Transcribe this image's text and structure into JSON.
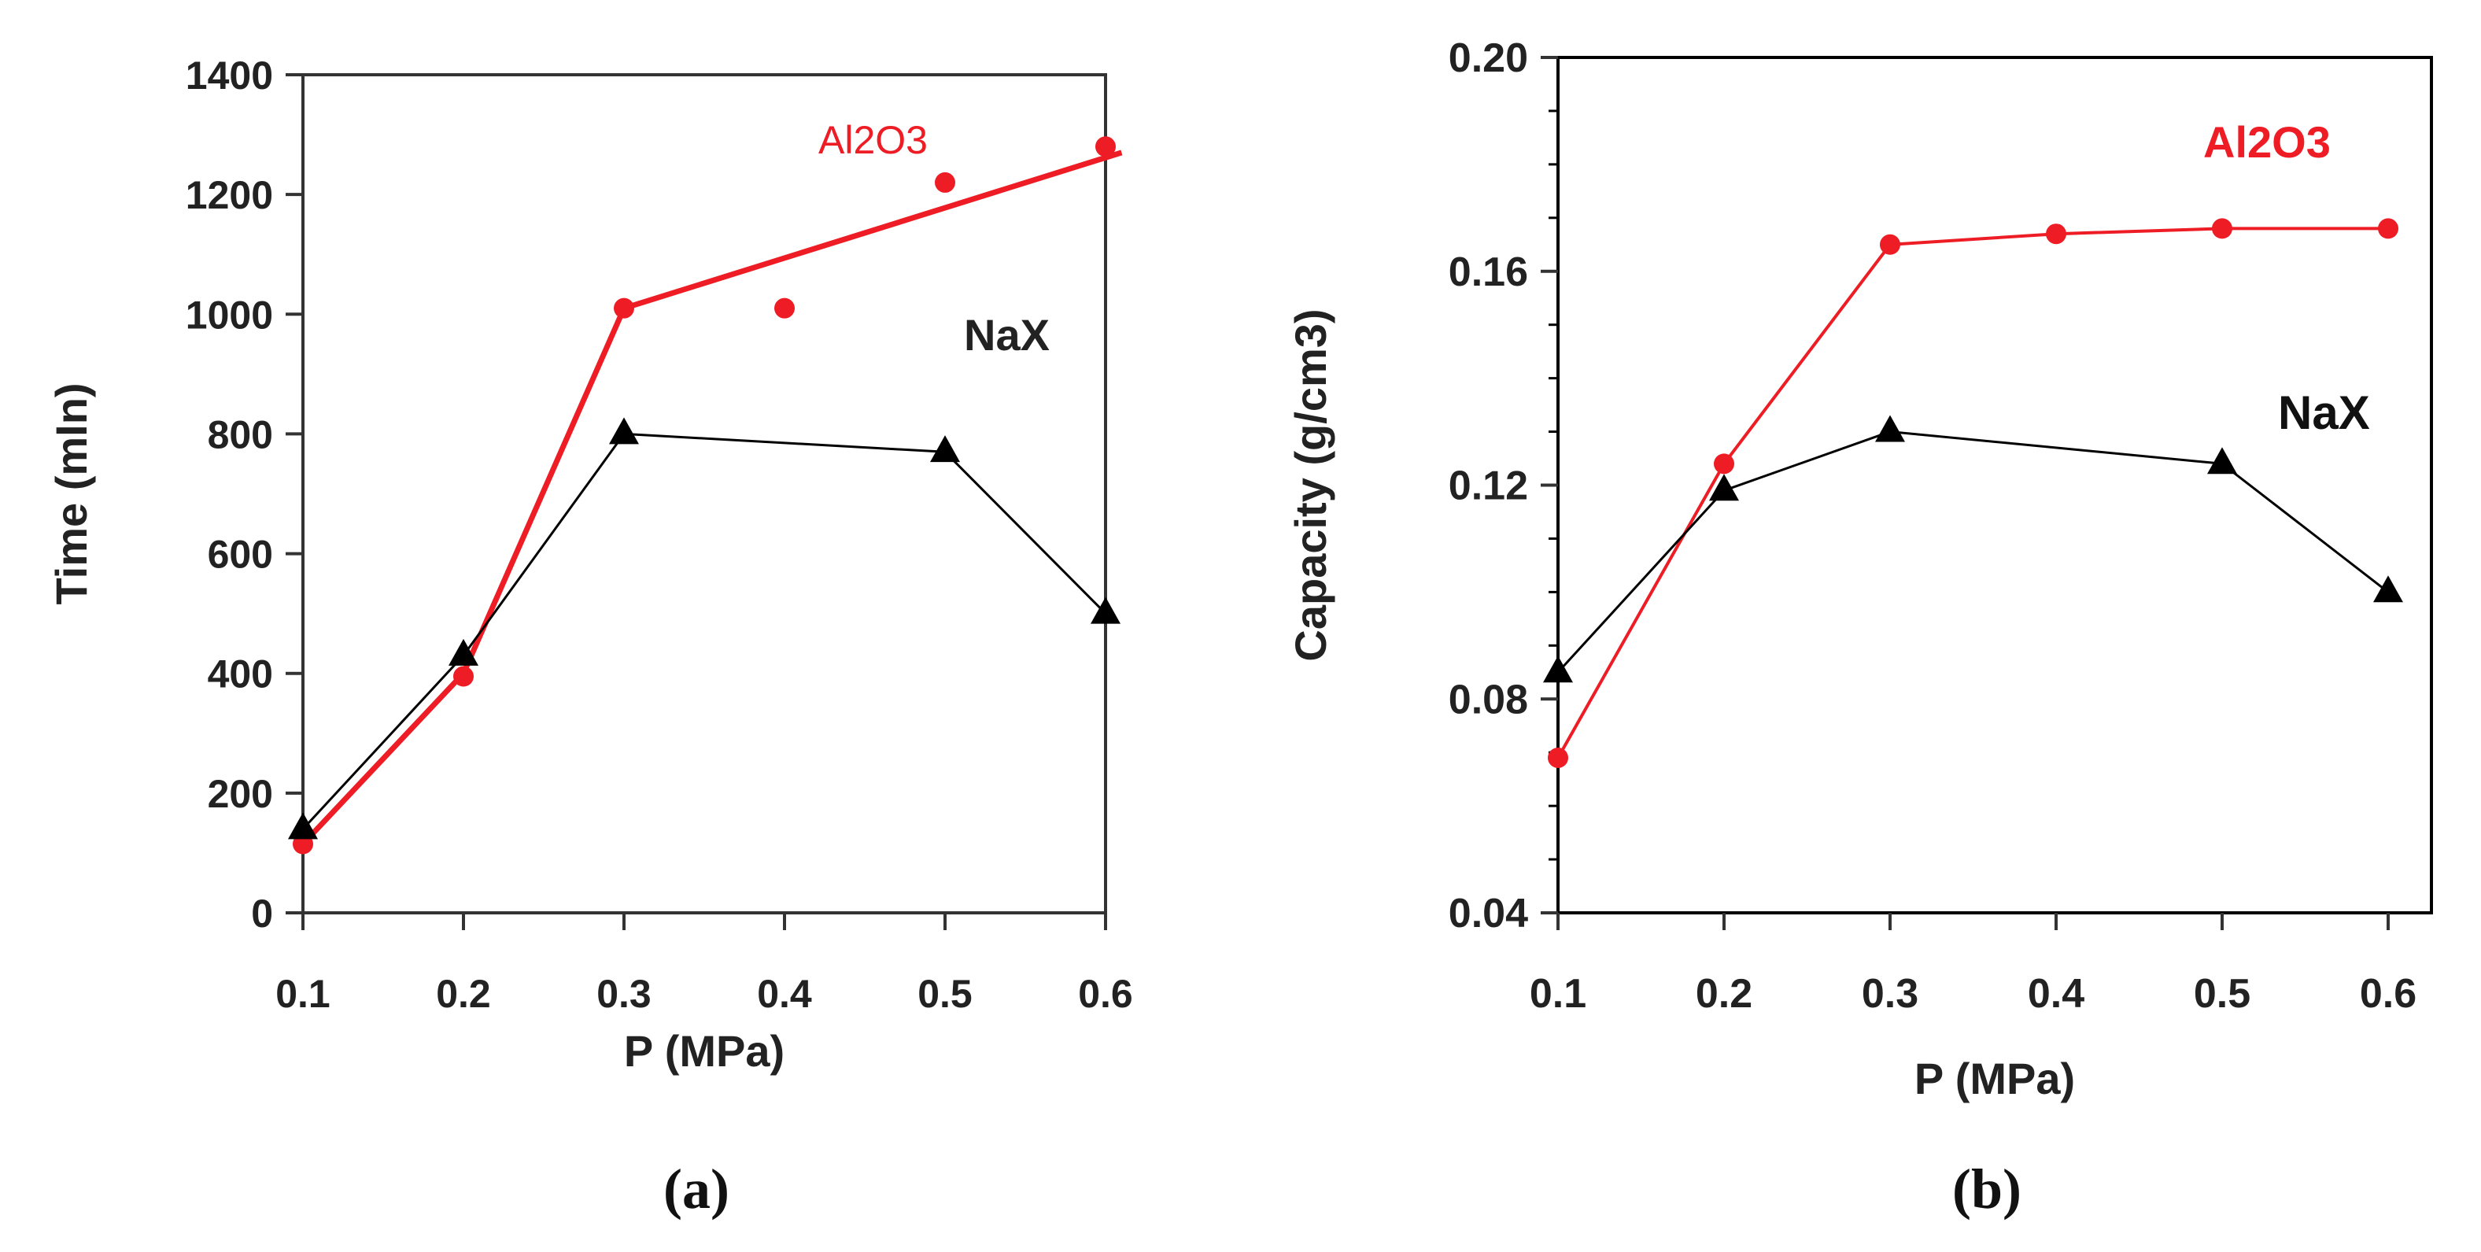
{
  "chart_data": [
    {
      "panel": "(a)",
      "type": "scatter",
      "xlabel": "P (MPa)",
      "ylabel": "Time (mIn)",
      "xlim": [
        0.1,
        0.6
      ],
      "ylim": [
        0,
        1400
      ],
      "xticks": [
        "0.1",
        "0.2",
        "0.3",
        "0.4",
        "0.5",
        "0.6"
      ],
      "yticks": [
        "0",
        "200",
        "400",
        "600",
        "800",
        "1000",
        "1200",
        "1400"
      ],
      "series": [
        {
          "name": "Al2O3",
          "color": "#ee1c24",
          "marker": "circle",
          "x": [
            0.1,
            0.2,
            0.3,
            0.4,
            0.5,
            0.6
          ],
          "values": [
            115,
            395,
            1010,
            1010,
            1220,
            1280
          ],
          "fit_line": {
            "x": [
              0.1,
              0.2,
              0.3,
              0.61
            ],
            "values": [
              115,
              400,
              1010,
              1270
            ]
          }
        },
        {
          "name": "NaX",
          "color": "#000000",
          "marker": "triangle",
          "x": [
            0.1,
            0.2,
            0.3,
            0.5,
            0.6
          ],
          "values": [
            140,
            430,
            800,
            770,
            500
          ]
        }
      ],
      "annotations": [
        {
          "text": "Al2O3",
          "color": "#ee1c24"
        },
        {
          "text": "NaX",
          "color": "#222222"
        }
      ]
    },
    {
      "panel": "(b)",
      "type": "line",
      "xlabel": "P (MPa)",
      "ylabel": "Capacity (g/cm3)",
      "xlim": [
        0.1,
        0.6
      ],
      "ylim": [
        0.04,
        0.2
      ],
      "xticks": [
        "0.1",
        "0.2",
        "0.3",
        "0.4",
        "0.5",
        "0.6"
      ],
      "yticks": [
        "0.04",
        "0.08",
        "0.12",
        "0.16",
        "0.20"
      ],
      "series": [
        {
          "name": "Al2O3",
          "color": "#ee1c24",
          "marker": "circle",
          "x": [
            0.1,
            0.2,
            0.3,
            0.4,
            0.5,
            0.6
          ],
          "values": [
            0.069,
            0.124,
            0.165,
            0.167,
            0.168,
            0.168
          ]
        },
        {
          "name": "NaX",
          "color": "#000000",
          "marker": "triangle",
          "x": [
            0.1,
            0.2,
            0.3,
            0.5,
            0.6
          ],
          "values": [
            0.085,
            0.119,
            0.13,
            0.124,
            0.1
          ]
        }
      ],
      "annotations": [
        {
          "text": "Al2O3",
          "color": "#ee1c24"
        },
        {
          "text": "NaX",
          "color": "#111111"
        }
      ]
    }
  ]
}
